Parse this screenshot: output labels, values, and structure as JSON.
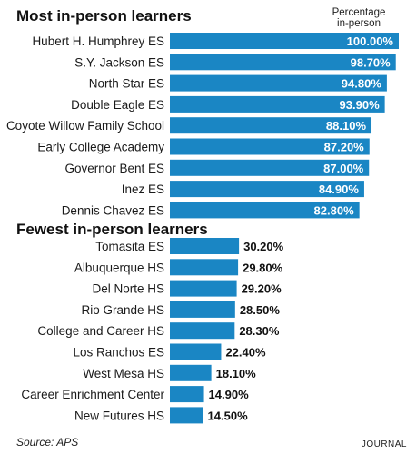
{
  "sections": {
    "most_title": "Most in-person learners",
    "fewest_title": "Fewest in-person learners"
  },
  "column_header_line1": "Percentage",
  "column_header_line2": "in-person",
  "source": "Source: APS",
  "brand": "JOURNAL",
  "colors": {
    "bar": "#1a86c4",
    "label_in_bar": "#ffffff",
    "label_outside": "#111111"
  },
  "chart_data": [
    {
      "type": "bar",
      "orientation": "horizontal",
      "title": "Most in-person learners",
      "value_label": "Percentage in-person",
      "categories": [
        "Hubert H. Humphrey ES",
        "S.Y. Jackson ES",
        "North Star ES",
        "Double Eagle ES",
        "Coyote Willow Family School",
        "Early College Academy",
        "Governor Bent ES",
        "Inez ES",
        "Dennis Chavez ES"
      ],
      "values": [
        100.0,
        98.7,
        94.8,
        93.9,
        88.1,
        87.2,
        87.0,
        84.9,
        82.8
      ],
      "labels": [
        "100.00%",
        "98.70%",
        "94.80%",
        "93.90%",
        "88.10%",
        "87.20%",
        "87.00%",
        "84.90%",
        "82.80%"
      ],
      "xlim": [
        0,
        100
      ]
    },
    {
      "type": "bar",
      "orientation": "horizontal",
      "title": "Fewest in-person learners",
      "value_label": "Percentage in-person",
      "categories": [
        "Tomasita ES",
        "Albuquerque HS",
        "Del Norte HS",
        "Rio Grande HS",
        "College and Career HS",
        "Los Ranchos ES",
        "West Mesa HS",
        "Career Enrichment Center",
        "New Futures HS"
      ],
      "values": [
        30.2,
        29.8,
        29.2,
        28.5,
        28.3,
        22.4,
        18.1,
        14.9,
        14.5
      ],
      "labels": [
        "30.20%",
        "29.80%",
        "29.20%",
        "28.50%",
        "28.30%",
        "22.40%",
        "18.10%",
        "14.90%",
        "14.50%"
      ],
      "xlim": [
        0,
        100
      ]
    }
  ]
}
